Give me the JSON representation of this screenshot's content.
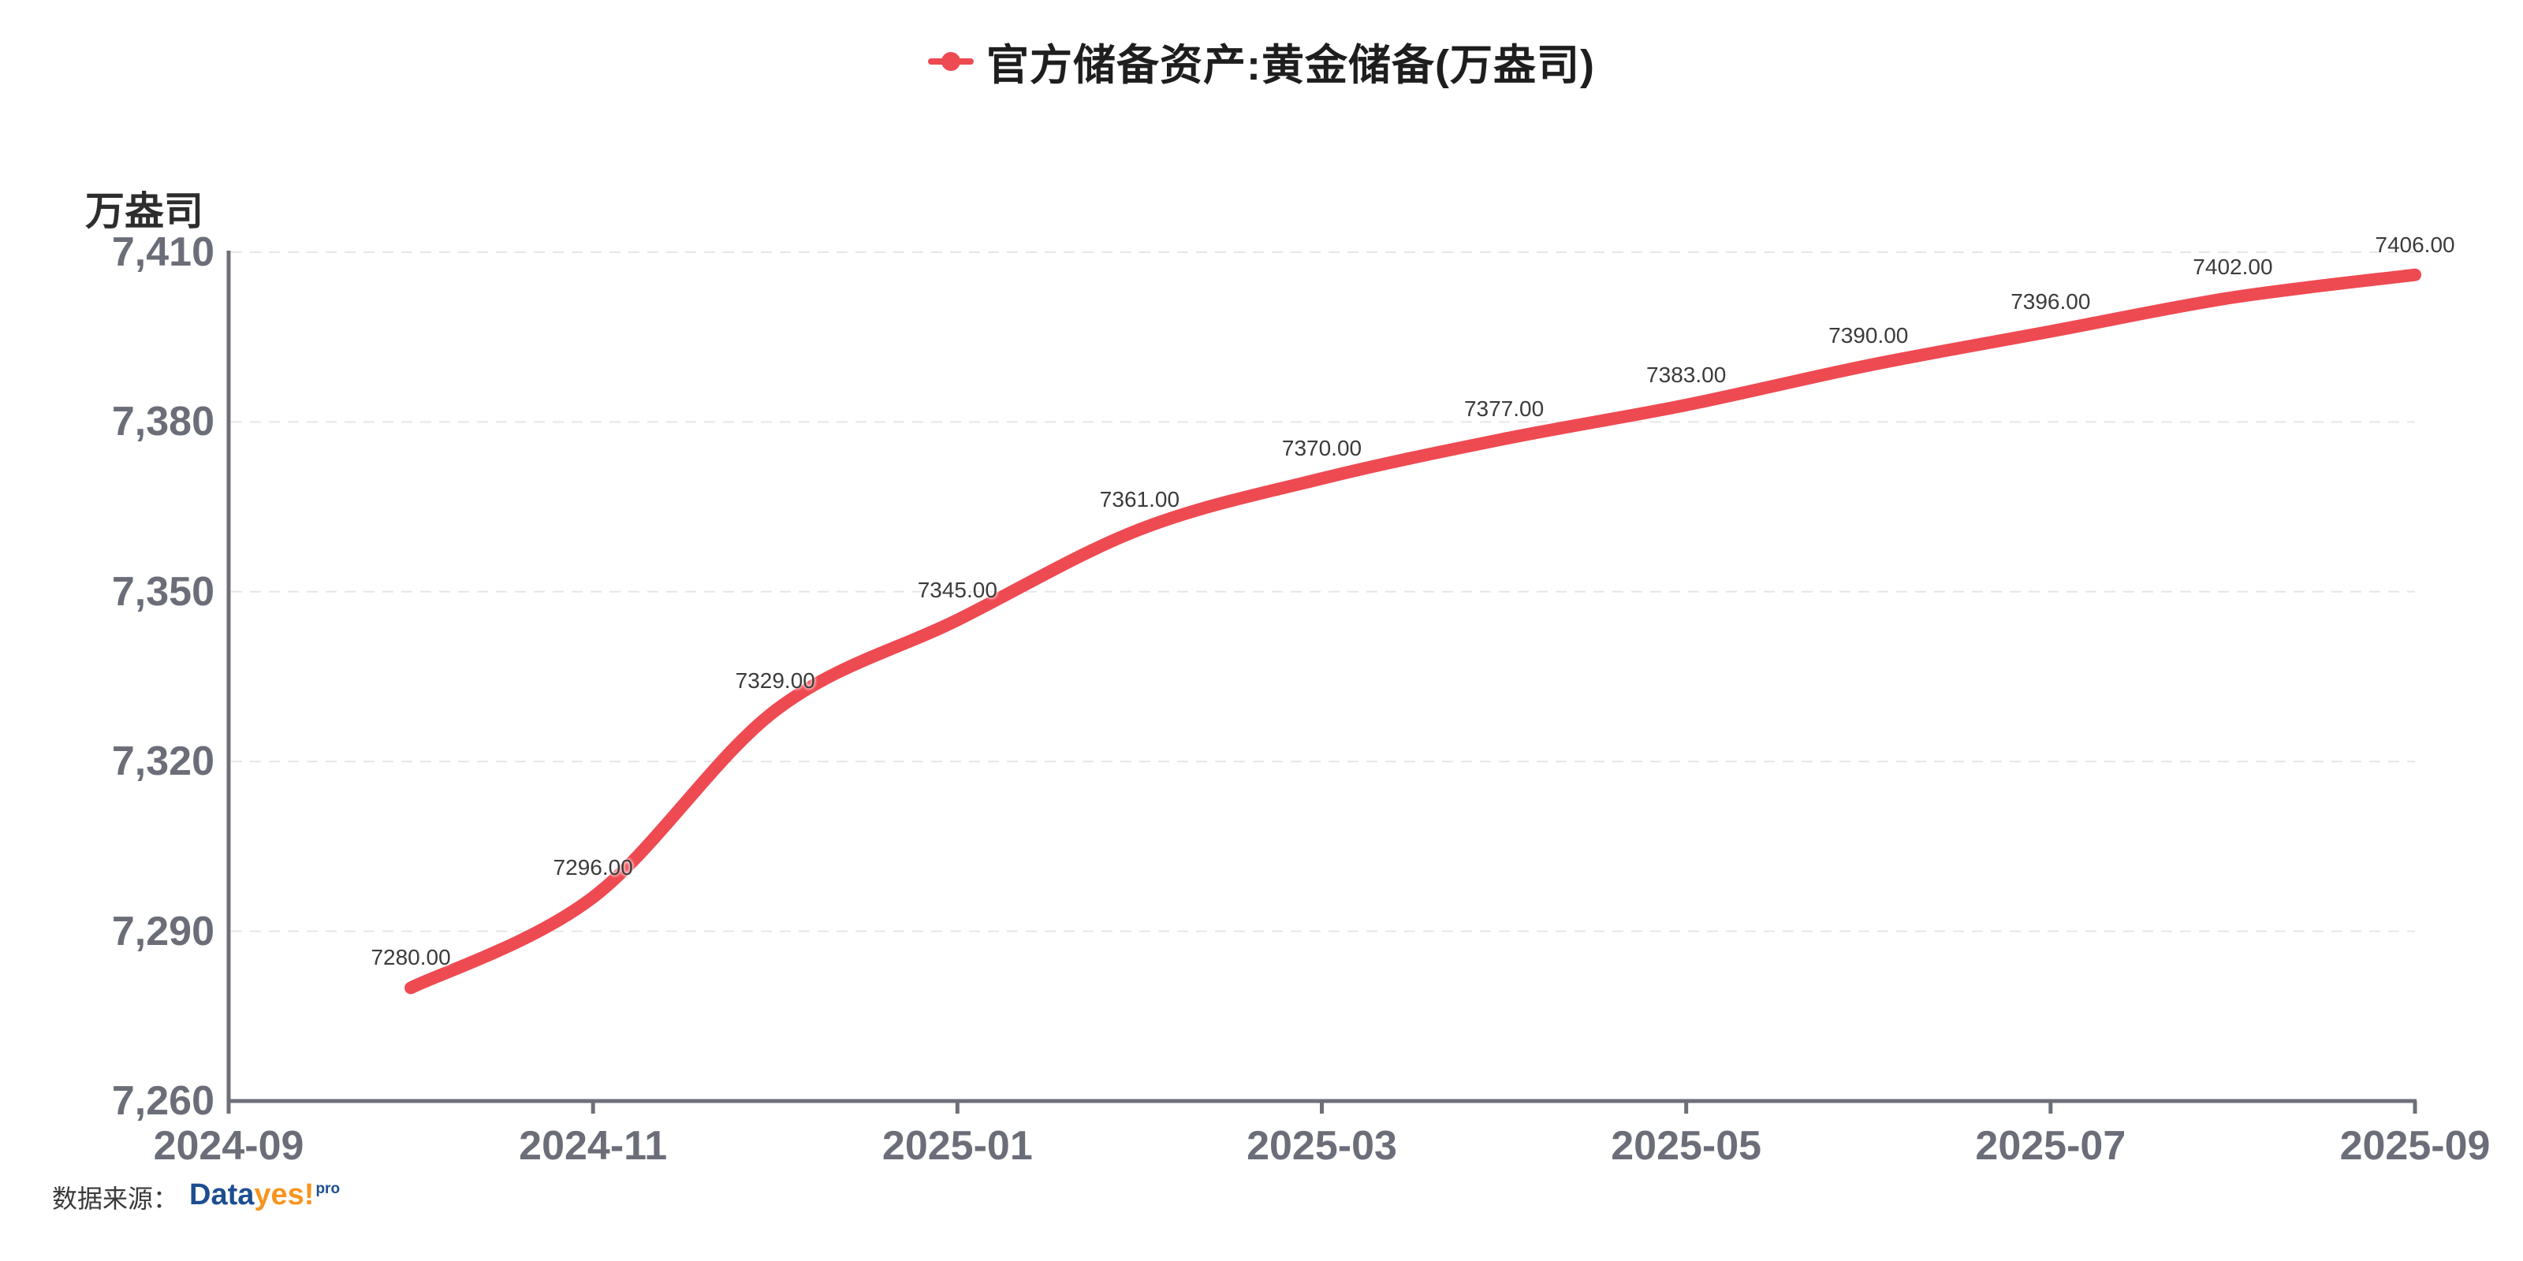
{
  "header": {
    "title": "官方储备资产:黄金储备(万盎司)"
  },
  "y_axis": {
    "name": "万盎司"
  },
  "source": {
    "prefix": "数据来源：",
    "brand_data": "Data",
    "brand_yes": "yes!",
    "brand_pro": "pro"
  },
  "colors": {
    "series_red": "#ee4a52",
    "axis_line": "#6E7079",
    "grid_line": "#e6e6e8",
    "tick_text": "#6b6e78",
    "brand_blue": "#1d4e91",
    "brand_orange": "#f7941e"
  },
  "chart_data": {
    "type": "line",
    "title": "官方储备资产:黄金储备(万盎司)",
    "ylabel": "万盎司",
    "legend_position": "top-center",
    "grid": "horizontal-dashed",
    "line_style": "smooth, thick, no point markers, value labels above points",
    "x_range": [
      "2024-09",
      "2025-09"
    ],
    "ylim": [
      7260,
      7410
    ],
    "y_ticks": [
      7410,
      7380,
      7350,
      7320,
      7290,
      7260
    ],
    "y_tick_labels": [
      "7,410",
      "7,380",
      "7,350",
      "7,320",
      "7,290",
      "7,260"
    ],
    "x_tick_labels": [
      "2024-09",
      "2024-11",
      "2025-01",
      "2025-03",
      "2025-05",
      "2025-07",
      "2025-09"
    ],
    "series": [
      {
        "name": "官方储备资产:黄金储备(万盎司)",
        "color": "#ee4a52",
        "x": [
          "2024-10",
          "2024-11",
          "2024-12",
          "2025-01",
          "2025-02",
          "2025-03",
          "2025-04",
          "2025-05",
          "2025-06",
          "2025-07",
          "2025-08",
          "2025-09"
        ],
        "values": [
          7280,
          7296,
          7329,
          7345,
          7361,
          7370,
          7377,
          7383,
          7390,
          7396,
          7402,
          7406
        ],
        "point_labels": [
          "7280.00",
          "7296.00",
          "7329.00",
          "7345.00",
          "7361.00",
          "7370.00",
          "7377.00",
          "7383.00",
          "7390.00",
          "7396.00",
          "7402.00",
          "7406.00"
        ]
      }
    ]
  }
}
